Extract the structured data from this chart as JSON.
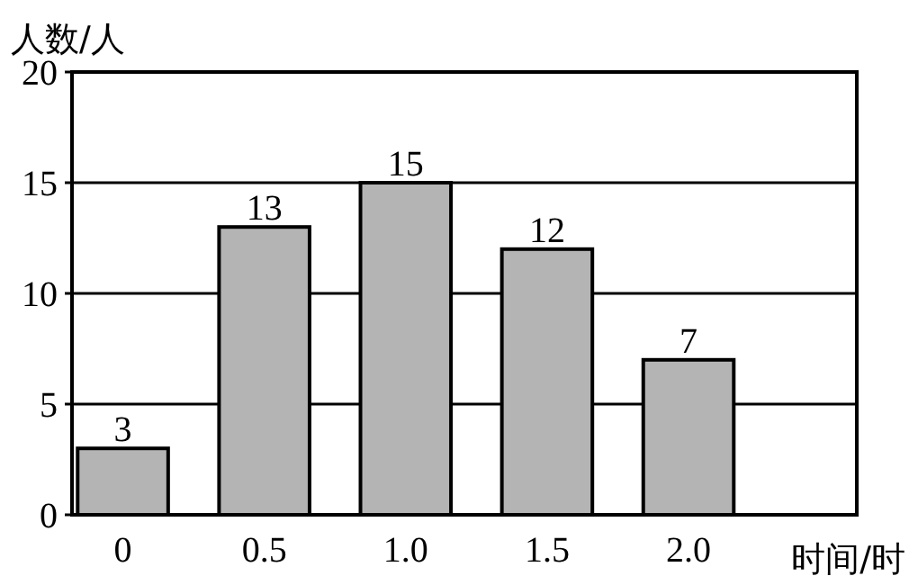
{
  "chart_data": {
    "type": "bar",
    "categories": [
      "0",
      "0.5",
      "1.0",
      "1.5",
      "2.0"
    ],
    "values": [
      3,
      13,
      15,
      12,
      7
    ],
    "color": "#b4b4b4",
    "ylim": [
      0,
      20
    ],
    "yticks": [
      0,
      5,
      10,
      15,
      20
    ],
    "grid": "y",
    "data_labels": true,
    "xlabel": "时间/时",
    "ylabel": "人数/人"
  }
}
